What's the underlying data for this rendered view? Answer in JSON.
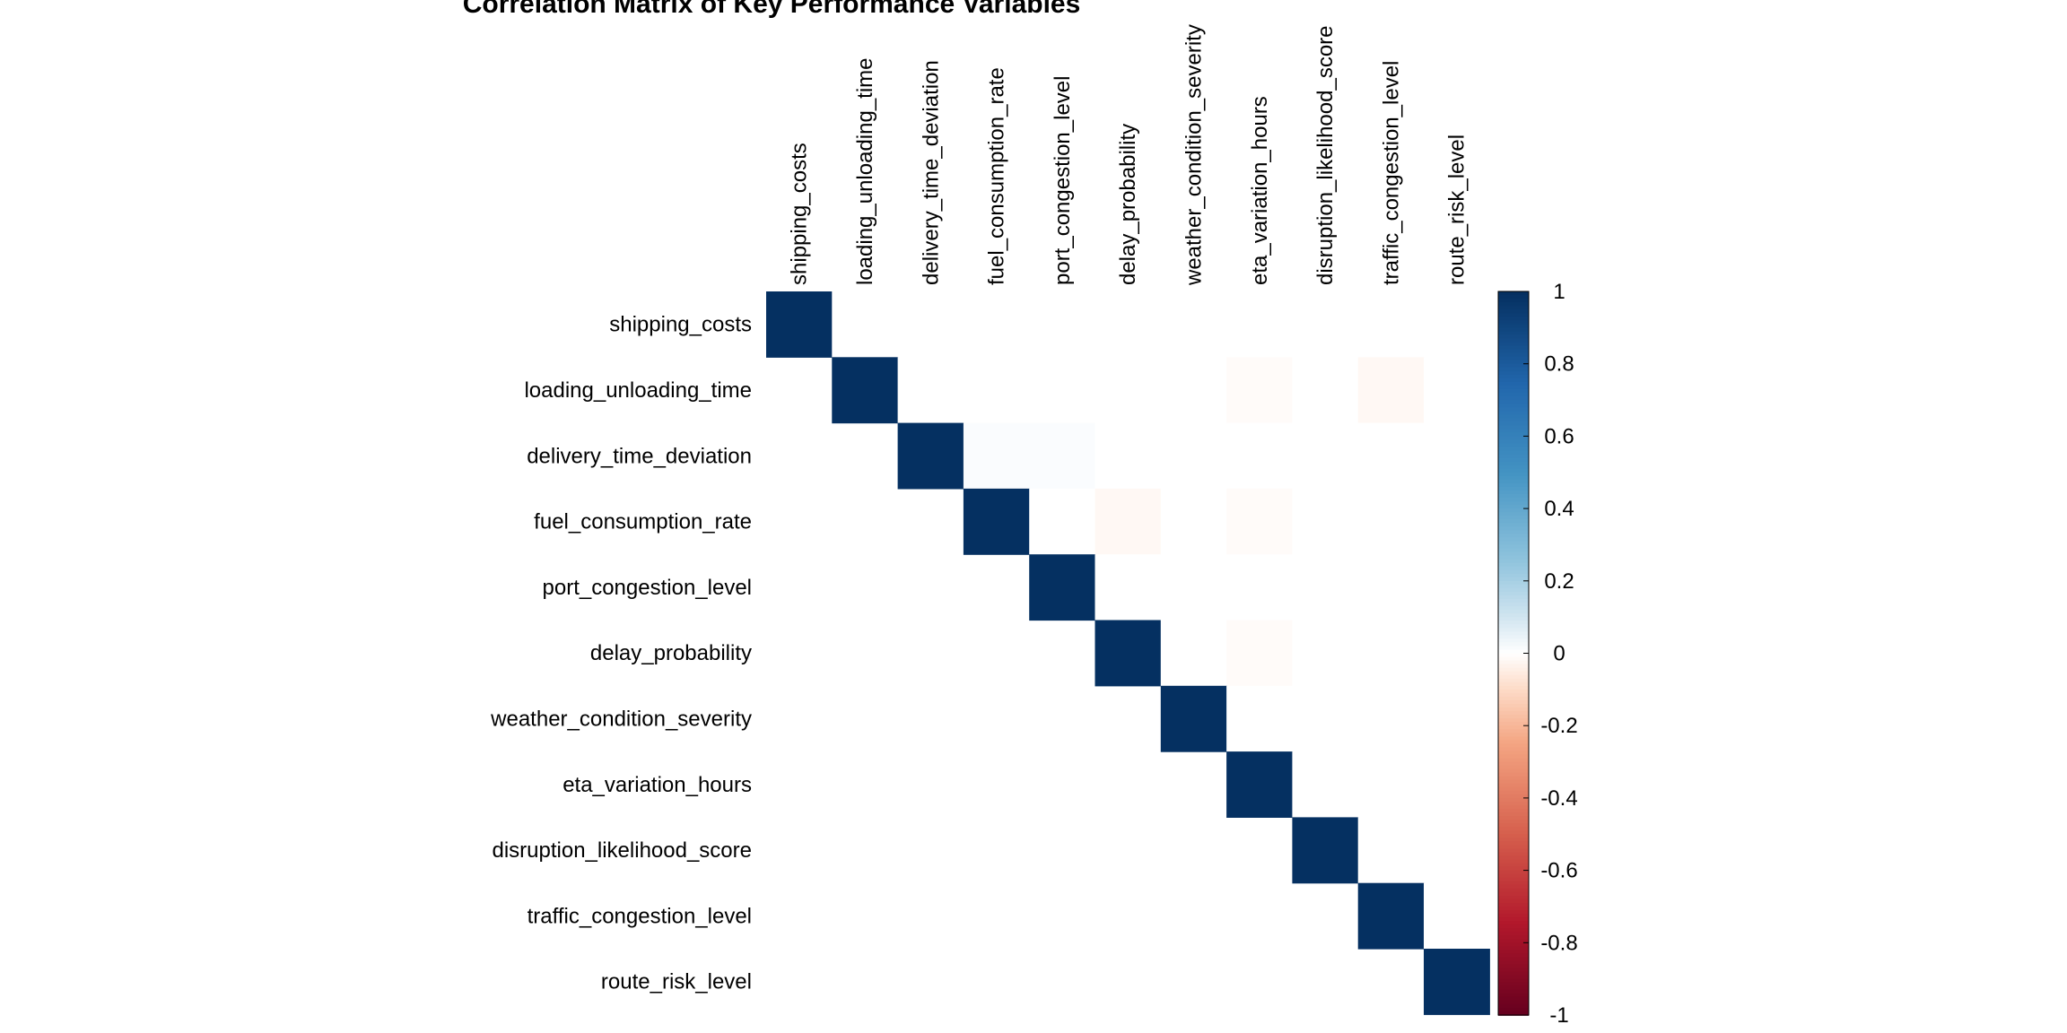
{
  "chart_data": {
    "type": "heatmap",
    "title": "Correlation Matrix of Key Performance Variables",
    "variables": [
      "shipping_costs",
      "loading_unloading_time",
      "delivery_time_deviation",
      "fuel_consumption_rate",
      "port_congestion_level",
      "delay_probability",
      "weather_condition_severity",
      "eta_variation_hours",
      "disruption_likelihood_score",
      "traffic_congestion_level",
      "route_risk_level"
    ],
    "display": "upper",
    "matrix": [
      [
        1.0,
        0.0,
        0.0,
        0.0,
        0.0,
        0.0,
        0.0,
        0.0,
        0.0,
        0.0,
        0.0
      ],
      [
        0.0,
        1.0,
        0.0,
        0.0,
        0.0,
        0.0,
        0.0,
        -0.01,
        0.0,
        -0.02,
        0.0
      ],
      [
        0.0,
        0.0,
        1.0,
        0.01,
        0.01,
        0.0,
        0.0,
        0.0,
        0.0,
        0.0,
        0.0
      ],
      [
        0.0,
        0.0,
        0.01,
        1.0,
        0.0,
        -0.02,
        0.0,
        -0.01,
        0.0,
        0.0,
        0.0
      ],
      [
        0.0,
        0.0,
        0.01,
        0.0,
        1.0,
        0.0,
        0.0,
        0.0,
        0.0,
        0.0,
        0.0
      ],
      [
        0.0,
        0.0,
        0.0,
        -0.02,
        0.0,
        1.0,
        0.0,
        -0.01,
        0.0,
        0.0,
        0.0
      ],
      [
        0.0,
        0.0,
        0.0,
        0.0,
        0.0,
        0.0,
        1.0,
        0.0,
        0.0,
        0.0,
        0.0
      ],
      [
        0.0,
        -0.01,
        0.0,
        -0.01,
        0.0,
        -0.01,
        0.0,
        1.0,
        0.0,
        0.0,
        0.0
      ],
      [
        0.0,
        0.0,
        0.0,
        0.0,
        0.0,
        0.0,
        0.0,
        0.0,
        1.0,
        0.0,
        0.0
      ],
      [
        0.0,
        -0.02,
        0.0,
        0.0,
        0.0,
        0.0,
        0.0,
        0.0,
        0.0,
        1.0,
        0.0
      ],
      [
        0.0,
        0.0,
        0.0,
        0.0,
        0.0,
        0.0,
        0.0,
        0.0,
        0.0,
        0.0,
        1.0
      ]
    ],
    "colorbar": {
      "range": [
        -1,
        1
      ],
      "ticks": [
        "1",
        "0.8",
        "0.6",
        "0.4",
        "0.2",
        "0",
        "-0.2",
        "-0.4",
        "-0.6",
        "-0.8",
        "-1"
      ],
      "colors": [
        {
          "value": -1.0,
          "color": "#67001F"
        },
        {
          "value": -0.75,
          "color": "#B2182B"
        },
        {
          "value": -0.5,
          "color": "#D6604D"
        },
        {
          "value": -0.25,
          "color": "#F4A582"
        },
        {
          "value": -0.1,
          "color": "#FDDBC7"
        },
        {
          "value": 0.0,
          "color": "#FFFFFF"
        },
        {
          "value": 0.1,
          "color": "#D1E5F0"
        },
        {
          "value": 0.25,
          "color": "#92C5DE"
        },
        {
          "value": 0.5,
          "color": "#4393C3"
        },
        {
          "value": 0.75,
          "color": "#2166AC"
        },
        {
          "value": 1.0,
          "color": "#053061"
        }
      ]
    }
  }
}
